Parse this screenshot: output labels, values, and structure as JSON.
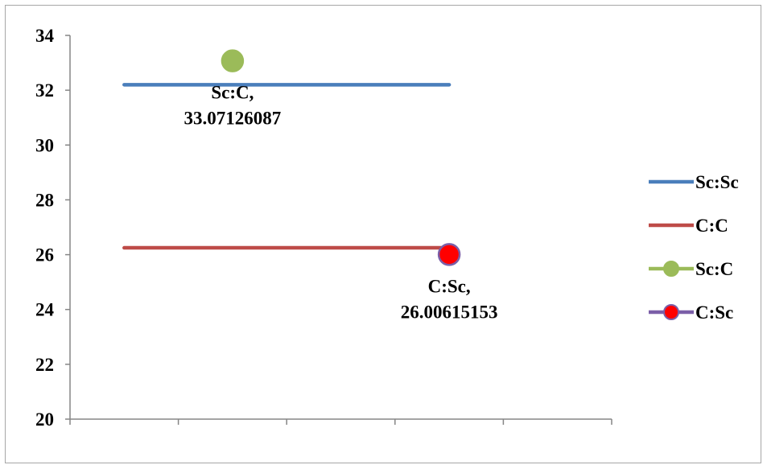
{
  "chart_data": {
    "type": "line",
    "title": "",
    "xlabel": "",
    "ylabel": "",
    "ylim": [
      20,
      34
    ],
    "yticks": [
      20,
      22,
      24,
      26,
      28,
      30,
      32,
      34
    ],
    "x_category_slots": 5,
    "grid": false,
    "legend_position": "right",
    "series": [
      {
        "name": "Sc:Sc",
        "kind": "line",
        "x": [
          1,
          4
        ],
        "values": [
          32.2,
          32.2
        ],
        "color": "#4a7ebb",
        "marker": "none"
      },
      {
        "name": "C:C",
        "kind": "line",
        "x": [
          1,
          4
        ],
        "values": [
          26.25,
          26.25
        ],
        "color": "#be4b48",
        "marker": "none"
      },
      {
        "name": "Sc:C",
        "kind": "point",
        "x": [
          2
        ],
        "values": [
          33.07126087
        ],
        "color": "#9bbb59",
        "marker": "circle",
        "data_label": [
          "Sc:C,",
          "33.07126087"
        ]
      },
      {
        "name": "C:Sc",
        "kind": "point",
        "x": [
          4
        ],
        "values": [
          26.00615153
        ],
        "color": "#ff0000",
        "edge_color": "#7b5fa8",
        "marker": "circle",
        "data_label": [
          "C:Sc,",
          "26.00615153"
        ]
      }
    ]
  }
}
